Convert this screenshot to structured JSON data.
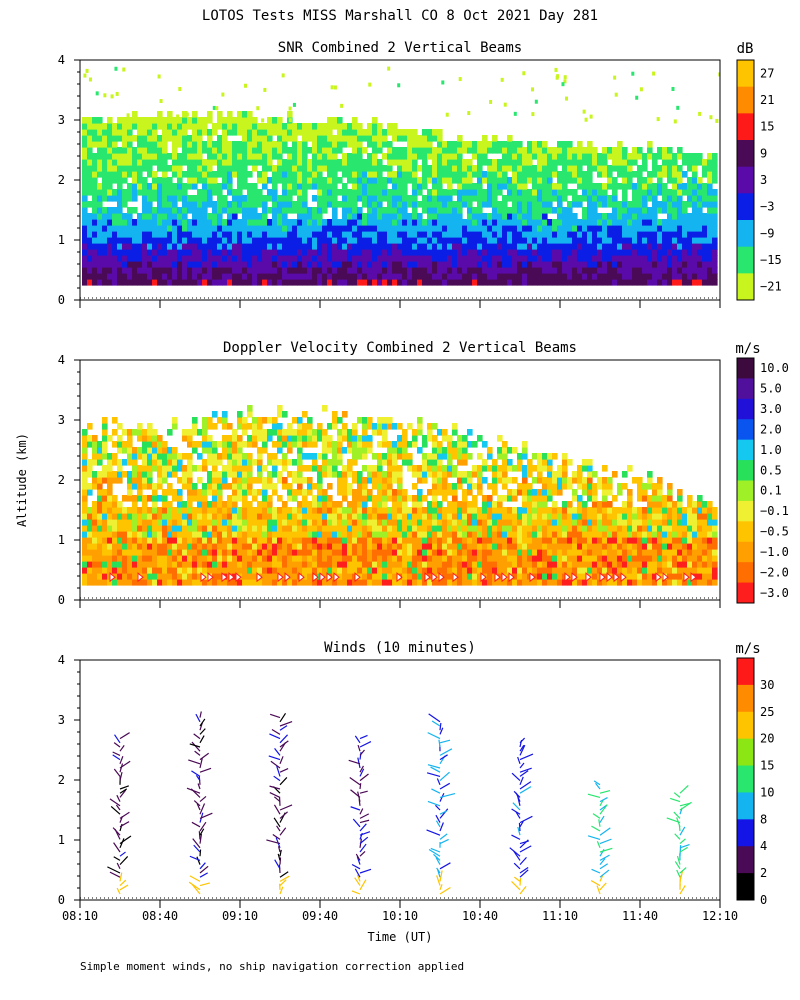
{
  "figure_title": "LOTOS Tests MISS Marshall CO   8 Oct 2021 Day 281",
  "ylabel": "Altitude (km)",
  "xlabel": "Time (UT)",
  "footnote": "Simple moment winds, no ship navigation correction applied",
  "x_ticks": [
    "08:10",
    "08:40",
    "09:10",
    "09:40",
    "10:10",
    "10:40",
    "11:10",
    "11:40",
    "12:10"
  ],
  "y_ticks": [
    "0",
    "1",
    "2",
    "3",
    "4"
  ],
  "chart_data": [
    {
      "type": "heatmap",
      "title": "SNR Combined 2 Vertical Beams",
      "unit": "dB",
      "x_range": [
        "08:10",
        "12:10"
      ],
      "ylim": [
        0,
        4
      ],
      "colorbar": {
        "labels": [
          "27",
          "21",
          "15",
          "9",
          "3",
          "−3",
          "−9",
          "−15",
          "−21"
        ],
        "colors": [
          "#ffc400",
          "#ff8c00",
          "#ff1a1a",
          "#4a0a55",
          "#5a0aa8",
          "#0a1ee6",
          "#14b4f0",
          "#28e66e",
          "#c8f51e"
        ]
      },
      "profile": [
        {
          "alt_km": 0.3,
          "snr_db": 8
        },
        {
          "alt_km": 0.7,
          "snr_db": 0
        },
        {
          "alt_km": 1.0,
          "snr_db": -6
        },
        {
          "alt_km": 1.5,
          "snr_db": -12
        },
        {
          "alt_km": 2.0,
          "snr_db": -16
        },
        {
          "alt_km": 2.5,
          "snr_db": -18
        },
        {
          "alt_km": 3.0,
          "snr_db": -21
        }
      ],
      "data_top_km": [
        2.95,
        3.05,
        3.0,
        2.95,
        2.7,
        2.6,
        2.5,
        2.35
      ]
    },
    {
      "type": "heatmap",
      "title": "Doppler Velocity Combined 2 Vertical Beams",
      "unit": "m/s",
      "x_range": [
        "08:10",
        "12:10"
      ],
      "ylim": [
        0,
        4
      ],
      "colorbar": {
        "labels": [
          "10.0",
          "5.0",
          "3.0",
          "2.0",
          "1.0",
          "0.5",
          "0.1",
          "−0.1",
          "−0.5",
          "−1.0",
          "−2.0",
          "−3.0"
        ],
        "colors": [
          "#3c0a3c",
          "#50109c",
          "#2010d8",
          "#0a55f0",
          "#14c8f0",
          "#28e05a",
          "#a0f028",
          "#f0f032",
          "#ffc400",
          "#ffa000",
          "#ff6e00",
          "#ff1e1e"
        ]
      },
      "data_top_km": [
        2.85,
        2.9,
        3.1,
        3.0,
        2.8,
        2.45,
        2.05,
        1.5
      ]
    },
    {
      "type": "wind_barbs",
      "title": "Winds (10 minutes)",
      "unit": "m/s",
      "x_range": [
        "08:10",
        "12:10"
      ],
      "ylim": [
        0,
        4
      ],
      "colorbar": {
        "labels": [
          "30",
          "25",
          "20",
          "15",
          "10",
          "8",
          "4",
          "2",
          "0"
        ],
        "colors": [
          "#ff1a1a",
          "#ff8c00",
          "#ffc400",
          "#8ce614",
          "#28e66e",
          "#14b4f0",
          "#1414e6",
          "#4a0a55",
          "#000000"
        ]
      },
      "profiles": [
        {
          "time": "08:25",
          "top_km": 2.7,
          "speed_ms": 3
        },
        {
          "time": "08:55",
          "top_km": 3.1,
          "speed_ms": 3
        },
        {
          "time": "09:25",
          "top_km": 3.05,
          "speed_ms": 3
        },
        {
          "time": "09:55",
          "top_km": 2.75,
          "speed_ms": 4
        },
        {
          "time": "10:25",
          "top_km": 3.0,
          "speed_ms": 8
        },
        {
          "time": "10:55",
          "top_km": 2.65,
          "speed_ms": 7
        },
        {
          "time": "11:25",
          "top_km": 1.95,
          "speed_ms": 10
        },
        {
          "time": "11:55",
          "top_km": 1.85,
          "speed_ms": 11
        }
      ]
    }
  ]
}
